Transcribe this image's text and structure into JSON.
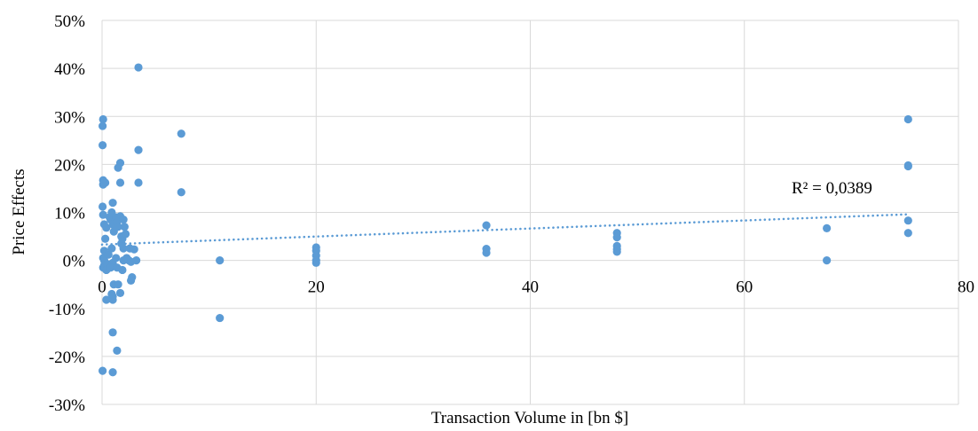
{
  "chart_data": {
    "type": "scatter",
    "xlabel": "Transaction Volume in [bn $]",
    "ylabel": "Price Effects",
    "xlim": [
      0,
      80
    ],
    "ylim": [
      -30,
      50
    ],
    "x_ticks": [
      "0",
      "20",
      "40",
      "60",
      "80"
    ],
    "y_ticks": [
      "-30%",
      "-20%",
      "-10%",
      "0%",
      "10%",
      "20%",
      "30%",
      "40%",
      "50%"
    ],
    "grid": true,
    "point_color": "#5B9BD5",
    "trendline": {
      "type": "linear",
      "x": [
        0,
        75.3
      ],
      "y": [
        3.3,
        9.6
      ],
      "style": "dotted",
      "color": "#5B9BD5",
      "label": "R² = 0,0389"
    },
    "series": [
      {
        "values": [
          {
            "x": 0.1,
            "y": 29.4
          },
          {
            "x": 0.05,
            "y": 28.0
          },
          {
            "x": 0.05,
            "y": 24.0
          },
          {
            "x": 0.1,
            "y": 16.7
          },
          {
            "x": 0.3,
            "y": 16.2
          },
          {
            "x": 0.1,
            "y": 15.8
          },
          {
            "x": 0.05,
            "y": 11.2
          },
          {
            "x": 0.1,
            "y": 9.5
          },
          {
            "x": 0.2,
            "y": 7.5
          },
          {
            "x": 0.4,
            "y": 6.8
          },
          {
            "x": 0.3,
            "y": 4.5
          },
          {
            "x": 0.2,
            "y": 2.0
          },
          {
            "x": 0.1,
            "y": 0.5
          },
          {
            "x": 0.2,
            "y": 0.0
          },
          {
            "x": 0.3,
            "y": -0.5
          },
          {
            "x": 0.2,
            "y": -1.0
          },
          {
            "x": 0.1,
            "y": -1.5
          },
          {
            "x": 0.4,
            "y": -2.0
          },
          {
            "x": 0.5,
            "y": -0.8
          },
          {
            "x": 0.6,
            "y": 1.2
          },
          {
            "x": 0.7,
            "y": 9.0
          },
          {
            "x": 0.8,
            "y": 8.5
          },
          {
            "x": 0.9,
            "y": 10.0
          },
          {
            "x": 1.0,
            "y": 12.0
          },
          {
            "x": 1.0,
            "y": 7.5
          },
          {
            "x": 1.1,
            "y": 6.0
          },
          {
            "x": 0.9,
            "y": 2.5
          },
          {
            "x": 1.0,
            "y": -0.5
          },
          {
            "x": 0.8,
            "y": -1.5
          },
          {
            "x": 1.1,
            "y": -5.0
          },
          {
            "x": 0.9,
            "y": -7.0
          },
          {
            "x": 1.0,
            "y": -7.5
          },
          {
            "x": 1.0,
            "y": -8.2
          },
          {
            "x": 0.4,
            "y": -8.2
          },
          {
            "x": 1.0,
            "y": -15.0
          },
          {
            "x": 0.05,
            "y": -23.0
          },
          {
            "x": 1.0,
            "y": -23.3
          },
          {
            "x": 1.3,
            "y": 9.0
          },
          {
            "x": 1.4,
            "y": 8.0
          },
          {
            "x": 1.5,
            "y": 7.0
          },
          {
            "x": 1.3,
            "y": 0.5
          },
          {
            "x": 1.4,
            "y": -1.5
          },
          {
            "x": 1.5,
            "y": -5.0
          },
          {
            "x": 1.4,
            "y": -18.8
          },
          {
            "x": 1.5,
            "y": 19.3
          },
          {
            "x": 1.7,
            "y": 20.3
          },
          {
            "x": 1.7,
            "y": 16.2
          },
          {
            "x": 1.7,
            "y": 9.2
          },
          {
            "x": 1.8,
            "y": 5.0
          },
          {
            "x": 1.8,
            "y": 3.5
          },
          {
            "x": 1.9,
            "y": 4.5
          },
          {
            "x": 2.0,
            "y": 8.5
          },
          {
            "x": 2.0,
            "y": 2.5
          },
          {
            "x": 2.0,
            "y": 0.0
          },
          {
            "x": 1.9,
            "y": -2.0
          },
          {
            "x": 1.7,
            "y": -6.8
          },
          {
            "x": 2.1,
            "y": 7.0
          },
          {
            "x": 2.2,
            "y": 5.5
          },
          {
            "x": 2.3,
            "y": 0.5
          },
          {
            "x": 2.5,
            "y": 0.0
          },
          {
            "x": 2.6,
            "y": 2.5
          },
          {
            "x": 2.7,
            "y": -0.3
          },
          {
            "x": 2.8,
            "y": -3.5
          },
          {
            "x": 2.7,
            "y": -4.2
          },
          {
            "x": 3.0,
            "y": 2.3
          },
          {
            "x": 3.2,
            "y": 0.0
          },
          {
            "x": 3.4,
            "y": 40.2
          },
          {
            "x": 3.4,
            "y": 23.0
          },
          {
            "x": 3.4,
            "y": 16.2
          },
          {
            "x": 7.4,
            "y": 26.4
          },
          {
            "x": 7.4,
            "y": 14.2
          },
          {
            "x": 11.0,
            "y": 0.0
          },
          {
            "x": 11.0,
            "y": -12.0
          },
          {
            "x": 20.0,
            "y": 2.7
          },
          {
            "x": 20.0,
            "y": 2.0
          },
          {
            "x": 20.0,
            "y": 1.0
          },
          {
            "x": 20.0,
            "y": 0.0
          },
          {
            "x": 20.0,
            "y": -0.5
          },
          {
            "x": 35.9,
            "y": 7.3
          },
          {
            "x": 35.9,
            "y": 2.4
          },
          {
            "x": 35.9,
            "y": 1.6
          },
          {
            "x": 48.1,
            "y": 5.7
          },
          {
            "x": 48.1,
            "y": 4.8
          },
          {
            "x": 48.1,
            "y": 3.0
          },
          {
            "x": 48.1,
            "y": 2.3
          },
          {
            "x": 48.1,
            "y": 1.8
          },
          {
            "x": 67.7,
            "y": 6.7
          },
          {
            "x": 67.7,
            "y": 0.0
          },
          {
            "x": 75.3,
            "y": 29.4
          },
          {
            "x": 75.3,
            "y": 19.8
          },
          {
            "x": 75.3,
            "y": 19.6
          },
          {
            "x": 75.3,
            "y": 8.3
          },
          {
            "x": 75.3,
            "y": 5.7
          }
        ]
      }
    ]
  }
}
